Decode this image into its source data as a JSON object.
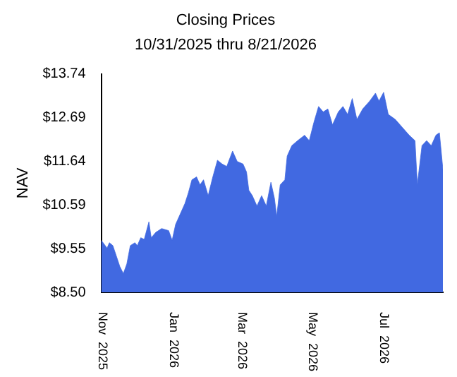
{
  "chart_data": {
    "type": "area",
    "title": "Closing Prices",
    "subtitle": "10/31/2025 thru 8/21/2026",
    "ylabel": "NAV",
    "x": [
      "2025-10-31",
      "2025-11-05",
      "2025-11-07",
      "2025-11-10",
      "2025-11-13",
      "2025-11-16",
      "2025-11-19",
      "2025-11-22",
      "2025-11-25",
      "2025-11-29",
      "2025-12-01",
      "2025-12-04",
      "2025-12-07",
      "2025-12-11",
      "2025-12-13",
      "2025-12-17",
      "2025-12-22",
      "2025-12-28",
      "2025-12-31",
      "2026-01-03",
      "2026-01-07",
      "2026-01-11",
      "2026-01-14",
      "2026-01-17",
      "2026-01-21",
      "2026-01-24",
      "2026-01-27",
      "2026-01-31",
      "2026-02-04",
      "2026-02-08",
      "2026-02-12",
      "2026-02-16",
      "2026-02-21",
      "2026-02-25",
      "2026-03-02",
      "2026-03-05",
      "2026-03-07",
      "2026-03-10",
      "2026-03-14",
      "2026-03-18",
      "2026-03-22",
      "2026-03-26",
      "2026-03-29",
      "2026-03-31",
      "2026-04-03",
      "2026-04-07",
      "2026-04-09",
      "2026-04-13",
      "2026-04-18",
      "2026-04-24",
      "2026-04-28",
      "2026-05-02",
      "2026-05-06",
      "2026-05-10",
      "2026-05-14",
      "2026-05-18",
      "2026-05-23",
      "2026-05-27",
      "2026-05-31",
      "2026-06-04",
      "2026-06-08",
      "2026-06-13",
      "2026-06-19",
      "2026-06-24",
      "2026-06-27",
      "2026-07-01",
      "2026-07-05",
      "2026-07-11",
      "2026-07-17",
      "2026-07-23",
      "2026-07-28",
      "2026-07-30",
      "2026-08-03",
      "2026-08-07",
      "2026-08-11",
      "2026-08-15",
      "2026-08-18",
      "2026-08-21"
    ],
    "series": [
      {
        "color": "#4169e1",
        "values": [
          9.75,
          9.56,
          9.69,
          9.62,
          9.37,
          9.12,
          8.95,
          9.18,
          9.62,
          9.69,
          9.62,
          9.81,
          9.77,
          10.19,
          9.81,
          9.94,
          10.03,
          9.98,
          9.75,
          10.13,
          10.38,
          10.63,
          10.89,
          11.2,
          11.27,
          11.08,
          11.2,
          10.82,
          11.27,
          11.67,
          11.58,
          11.52,
          11.89,
          11.64,
          11.58,
          11.39,
          10.95,
          10.82,
          10.57,
          10.82,
          10.57,
          11.14,
          10.76,
          10.32,
          11.08,
          11.2,
          11.77,
          12.02,
          12.14,
          12.27,
          12.14,
          12.58,
          12.96,
          12.83,
          12.9,
          12.52,
          12.83,
          12.96,
          12.77,
          13.15,
          12.65,
          12.9,
          13.09,
          13.28,
          13.09,
          13.3,
          12.77,
          12.65,
          12.46,
          12.27,
          12.14,
          11.08,
          12.02,
          12.14,
          12.02,
          12.27,
          12.33,
          11.45
        ]
      }
    ],
    "xlim": [
      "2025-10-31",
      "2026-08-21"
    ],
    "xticks": [
      {
        "value": "2025-11-01",
        "label": "Nov 2025"
      },
      {
        "value": "2026-01-01",
        "label": "Jan 2026"
      },
      {
        "value": "2026-03-01",
        "label": "Mar 2026"
      },
      {
        "value": "2026-05-01",
        "label": "May 2026"
      },
      {
        "value": "2026-07-01",
        "label": "Jul 2026"
      }
    ],
    "ylim": [
      8.5,
      13.74
    ],
    "yticks": [
      {
        "value": 8.5,
        "label": "$8.50"
      },
      {
        "value": 9.55,
        "label": "$9.55"
      },
      {
        "value": 10.59,
        "label": "$10.59"
      },
      {
        "value": 11.64,
        "label": "$11.64"
      },
      {
        "value": 12.69,
        "label": "$12.69"
      },
      {
        "value": 13.74,
        "label": "$13.74"
      }
    ],
    "grid": false,
    "legend": false
  }
}
